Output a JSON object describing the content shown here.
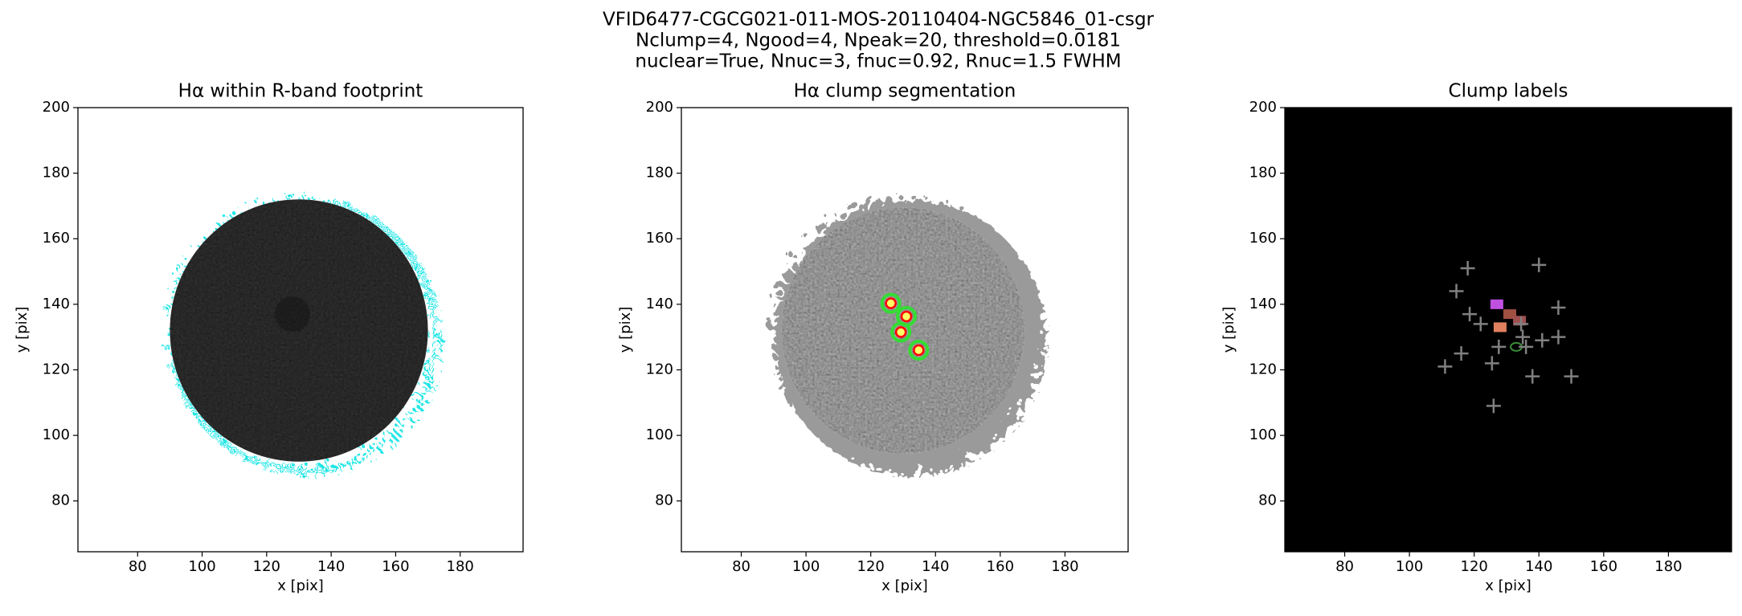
{
  "suptitle": [
    "VFID6477-CGCG021-011-MOS-20110404-NGC5846_01-csgr",
    "Nclump=4, Ngood=4, Npeak=20, threshold=0.0181",
    "nuclear=True, Nnuc=3, fnuc=0.92, Rnuc=1.5 FWHM"
  ],
  "chart_data": [
    {
      "type": "image",
      "title": "Hα within R-band footprint",
      "xlabel": "x [pix]",
      "ylabel": "y [pix]",
      "xlim": [
        61.5,
        199.5
      ],
      "ylim": [
        64.5,
        200
      ],
      "xticks": [
        80,
        100,
        120,
        140,
        160,
        180
      ],
      "yticks": [
        80,
        100,
        120,
        140,
        160,
        180,
        200
      ],
      "facecolor": "#ffffff"
    },
    {
      "type": "scatter",
      "title": "Hα clump segmentation",
      "xlabel": "x [pix]",
      "ylabel": "y [pix]",
      "xlim": [
        61.5,
        199.5
      ],
      "ylim": [
        64.5,
        200
      ],
      "xticks": [
        80,
        100,
        120,
        140,
        160,
        180
      ],
      "yticks": [
        80,
        100,
        120,
        140,
        160,
        180,
        200
      ],
      "facecolor": "#ffffff",
      "series": [
        {
          "color": "#ff0000",
          "x": [
            126.2,
            131,
            129.3,
            134.8
          ],
          "y": [
            140.3,
            136.3,
            131.5,
            126
          ]
        }
      ]
    },
    {
      "type": "scatter",
      "title": "Clump labels",
      "xlabel": "x [pix]",
      "ylabel": "y [pix]",
      "xlim": [
        61.5,
        199.5
      ],
      "ylim": [
        64.5,
        200
      ],
      "xticks": [
        80,
        100,
        120,
        140,
        160,
        180
      ],
      "yticks": [
        80,
        100,
        120,
        140,
        160,
        180,
        200
      ],
      "facecolor": "#000000",
      "series": [
        {
          "color": "#808080",
          "x": [
            118,
            140,
            114.5,
            118.6,
            122,
            146,
            141,
            146,
            116,
            111,
            125.5,
            138,
            150,
            126,
            127.6,
            135,
            136,
            134.5
          ],
          "y": [
            151,
            152,
            144,
            137,
            134,
            139,
            129,
            130,
            125,
            121,
            122,
            118,
            118,
            109,
            127,
            130,
            127,
            134
          ]
        }
      ]
    }
  ]
}
